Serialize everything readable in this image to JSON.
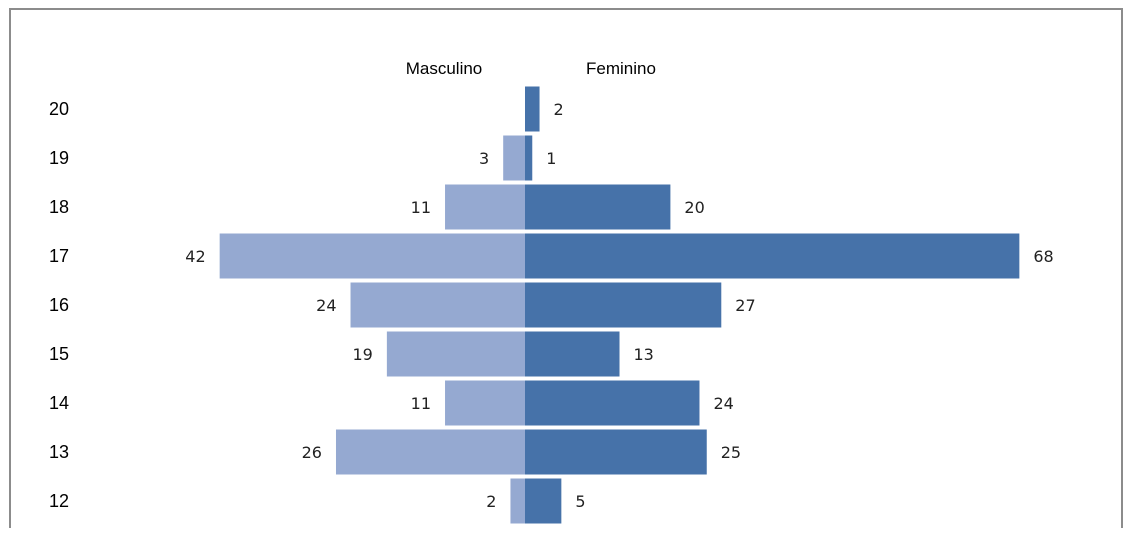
{
  "chart_data": {
    "type": "bar",
    "orientation": "horizontal-diverging",
    "categories": [
      "20",
      "19",
      "18",
      "17",
      "16",
      "15",
      "14",
      "13",
      "12"
    ],
    "series": [
      {
        "name": "Masculino",
        "values": [
          0,
          3,
          11,
          42,
          24,
          19,
          11,
          26,
          2
        ],
        "color": "#95a9d1"
      },
      {
        "name": "Feminino",
        "values": [
          2,
          1,
          20,
          68,
          27,
          13,
          24,
          25,
          5
        ],
        "color": "#4672a9"
      }
    ],
    "title": "",
    "xlabel": "",
    "ylabel": "",
    "legend_position": "top-center",
    "grid": false
  }
}
